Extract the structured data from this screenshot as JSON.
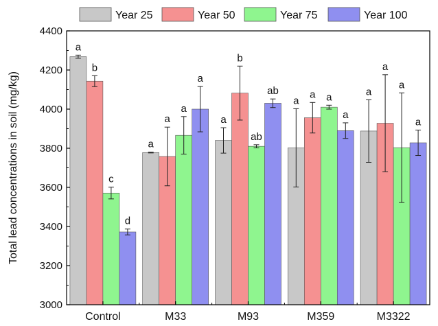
{
  "chart_data": {
    "type": "bar",
    "title": "",
    "xlabel": "",
    "ylabel": "Total lead concentrations in soil (mg/kg)",
    "ylim": [
      3000,
      4400
    ],
    "yticks": [
      3000,
      3200,
      3400,
      3600,
      3800,
      4000,
      4200,
      4400
    ],
    "categories": [
      "Control",
      "M33",
      "M93",
      "M359",
      "M3322"
    ],
    "legend_position": "top",
    "grid": false,
    "series": [
      {
        "name": "Year 25",
        "color": "#c8c8c8",
        "values": [
          4268,
          3778,
          3840,
          3802,
          3888
        ],
        "errors": [
          8,
          2,
          65,
          200,
          160
        ],
        "labels": [
          "a",
          "a",
          "a",
          "a",
          "a"
        ]
      },
      {
        "name": "Year 50",
        "color": "#f59191",
        "values": [
          4143,
          3758,
          4082,
          3956,
          3928
        ],
        "errors": [
          28,
          150,
          138,
          78,
          248
        ],
        "labels": [
          "b",
          "a",
          "b",
          "a",
          "a"
        ]
      },
      {
        "name": "Year 75",
        "color": "#8ff58f",
        "values": [
          3571,
          3866,
          3810,
          4010,
          3803
        ],
        "errors": [
          30,
          96,
          8,
          10,
          280
        ],
        "labels": [
          "c",
          "a",
          "ab",
          "a",
          "a"
        ]
      },
      {
        "name": "Year 100",
        "color": "#8f8ff0",
        "values": [
          3372,
          4000,
          4030,
          3890,
          3828
        ],
        "errors": [
          15,
          116,
          22,
          40,
          65
        ],
        "labels": [
          "d",
          "a",
          "ab",
          "a",
          "a"
        ]
      }
    ]
  }
}
